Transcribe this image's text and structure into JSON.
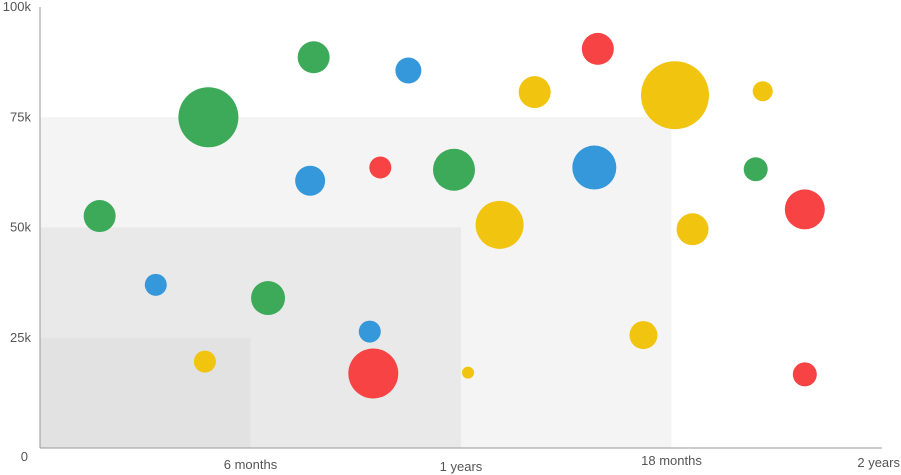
{
  "chart_data": {
    "type": "scatter",
    "subtype": "bubble",
    "title": "",
    "xlabel": "",
    "ylabel": "",
    "x_unit": "months",
    "x_range": [
      0,
      24
    ],
    "y_range": [
      0,
      100000
    ],
    "x_ticks": [
      {
        "value": 6,
        "label": "6 months"
      },
      {
        "value": 12,
        "label": "1 years"
      },
      {
        "value": 18,
        "label": "18 months"
      },
      {
        "value": 24,
        "label": "2 years"
      }
    ],
    "y_ticks": [
      {
        "value": 0,
        "label": "0"
      },
      {
        "value": 25000,
        "label": "25k"
      },
      {
        "value": 50000,
        "label": "50k"
      },
      {
        "value": 75000,
        "label": "75k"
      },
      {
        "value": 100000,
        "label": "100k"
      }
    ],
    "grid": false,
    "legend": "none",
    "background_bands": [
      {
        "x_max": 18,
        "y_max": 75000,
        "color": "#f4f4f4"
      },
      {
        "x_max": 12,
        "y_max": 50000,
        "color": "#e9e9e9"
      },
      {
        "x_max": 6,
        "y_max": 25000,
        "color": "#e2e2e2"
      }
    ],
    "colors": {
      "green": "#3daa5a",
      "blue": "#3598db",
      "red": "#f74343",
      "yellow": "#f1c40f"
    },
    "points": [
      {
        "x": 1.7,
        "y": 52600,
        "size": 16,
        "color": "green"
      },
      {
        "x": 3.3,
        "y": 37000,
        "size": 11,
        "color": "blue"
      },
      {
        "x": 4.8,
        "y": 75000,
        "size": 30,
        "color": "green"
      },
      {
        "x": 4.7,
        "y": 19600,
        "size": 11,
        "color": "yellow"
      },
      {
        "x": 6.5,
        "y": 34000,
        "size": 17,
        "color": "green"
      },
      {
        "x": 7.7,
        "y": 60600,
        "size": 15,
        "color": "blue"
      },
      {
        "x": 7.8,
        "y": 88600,
        "size": 16,
        "color": "green"
      },
      {
        "x": 9.5,
        "y": 16900,
        "size": 25,
        "color": "red"
      },
      {
        "x": 9.4,
        "y": 26400,
        "size": 11,
        "color": "blue"
      },
      {
        "x": 9.7,
        "y": 63600,
        "size": 11,
        "color": "red"
      },
      {
        "x": 10.5,
        "y": 85600,
        "size": 13,
        "color": "blue"
      },
      {
        "x": 11.8,
        "y": 63100,
        "size": 21,
        "color": "green"
      },
      {
        "x": 12.2,
        "y": 17100,
        "size": 6,
        "color": "yellow"
      },
      {
        "x": 13.1,
        "y": 50600,
        "size": 24,
        "color": "yellow"
      },
      {
        "x": 14.1,
        "y": 80700,
        "size": 16,
        "color": "yellow"
      },
      {
        "x": 15.9,
        "y": 90500,
        "size": 16,
        "color": "red"
      },
      {
        "x": 15.8,
        "y": 63600,
        "size": 22,
        "color": "blue"
      },
      {
        "x": 17.2,
        "y": 25600,
        "size": 14,
        "color": "yellow"
      },
      {
        "x": 18.1,
        "y": 80000,
        "size": 34,
        "color": "yellow"
      },
      {
        "x": 18.6,
        "y": 49600,
        "size": 16,
        "color": "yellow"
      },
      {
        "x": 20.6,
        "y": 80900,
        "size": 10,
        "color": "yellow"
      },
      {
        "x": 20.4,
        "y": 63200,
        "size": 12,
        "color": "green"
      },
      {
        "x": 21.8,
        "y": 54100,
        "size": 20,
        "color": "red"
      },
      {
        "x": 21.8,
        "y": 16700,
        "size": 12,
        "color": "red"
      }
    ]
  }
}
